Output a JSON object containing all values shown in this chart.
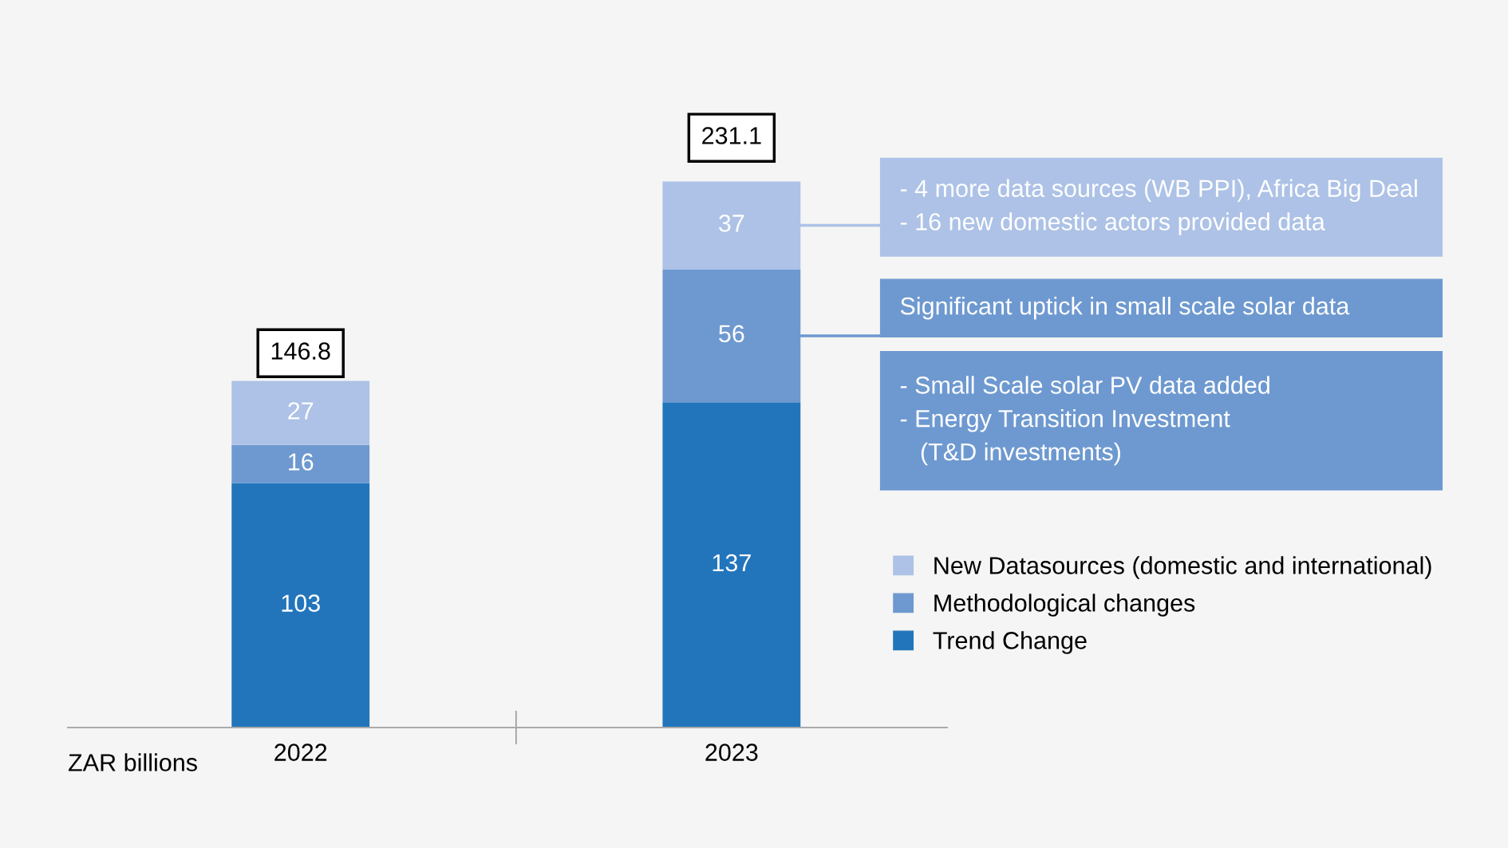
{
  "chart_data": {
    "type": "bar",
    "stacked": true,
    "categories": [
      "2022",
      "2023"
    ],
    "series": [
      {
        "name": "Trend Change",
        "color": "#2275bb",
        "values": [
          103,
          137
        ]
      },
      {
        "name": "Methodological changes",
        "color": "#6e99d0",
        "values": [
          16,
          56
        ]
      },
      {
        "name": "New Datasources (domestic and international)",
        "color": "#adc2e6",
        "values": [
          27,
          37
        ]
      }
    ],
    "data_labels": true,
    "legend": "right",
    "annotations": [
      "- 4 more data sources (WB PPI), Africa Big Deal\n- 16 new domestic actors provided data",
      "Significant uptick in small scale solar data",
      "- Small Scale solar PV data added\n- Energy Transition Investment\n   (T&D investments)",
      "ZAR billions",
      {
        "text": "146.8",
        "x": "2022",
        "y": 146
      },
      {
        "text": "231.1",
        "x": "2023",
        "y": 230
      }
    ]
  }
}
